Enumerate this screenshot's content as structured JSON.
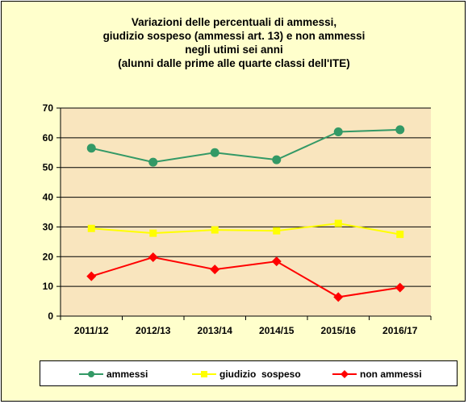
{
  "title_lines": [
    "Variazioni delle percentuali di ammessi,",
    "giudizio sospeso (ammessi art. 13) e non ammessi",
    "negli utimi sei anni",
    "(alunni dalle prime alle quarte classi dell'ITE)"
  ],
  "colors": {
    "frame_bg": "#ffffcc",
    "plot_bg": "#f9e5be",
    "ammessi": "#339966",
    "giudizio_sospeso": "#ffff00",
    "non_ammessi": "#ff0000"
  },
  "chart_data": {
    "type": "line",
    "title": "Variazioni delle percentuali di ammessi, giudizio sospeso (ammessi art. 13) e non ammessi negli utimi sei anni (alunni dalle prime alle quarte classi dell'ITE)",
    "categories": [
      "2011/12",
      "2012/13",
      "2013/14",
      "2014/15",
      "2015/16",
      "2016/17"
    ],
    "ylim": [
      0,
      70
    ],
    "yticks": [
      0,
      10,
      20,
      30,
      40,
      50,
      60,
      70
    ],
    "grid": true,
    "legend": "bottom",
    "series": [
      {
        "name": "ammessi",
        "marker": "circle",
        "color": "#339966",
        "values": [
          56.5,
          51.8,
          55.0,
          52.6,
          62.0,
          62.7
        ]
      },
      {
        "name": "giudizio  sospeso",
        "marker": "square",
        "color": "#ffff00",
        "values": [
          29.5,
          27.9,
          29.0,
          28.7,
          31.2,
          27.5
        ]
      },
      {
        "name": "non ammessi",
        "marker": "diamond",
        "color": "#ff0000",
        "values": [
          13.4,
          19.8,
          15.7,
          18.4,
          6.4,
          9.6
        ]
      }
    ]
  }
}
